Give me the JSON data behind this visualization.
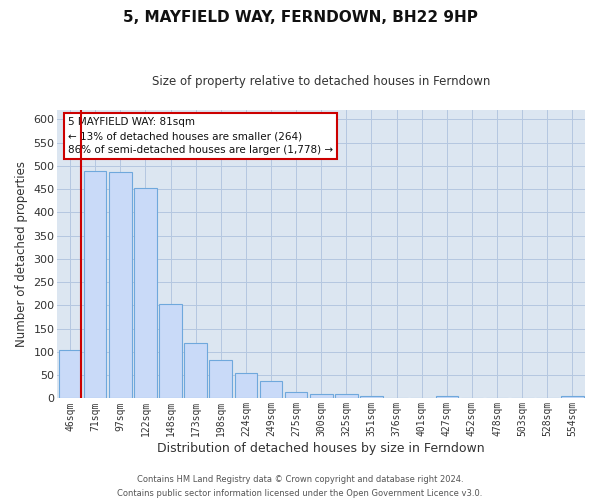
{
  "title": "5, MAYFIELD WAY, FERNDOWN, BH22 9HP",
  "subtitle": "Size of property relative to detached houses in Ferndown",
  "xlabel": "Distribution of detached houses by size in Ferndown",
  "ylabel": "Number of detached properties",
  "bar_labels": [
    "46sqm",
    "71sqm",
    "97sqm",
    "122sqm",
    "148sqm",
    "173sqm",
    "198sqm",
    "224sqm",
    "249sqm",
    "275sqm",
    "300sqm",
    "325sqm",
    "351sqm",
    "376sqm",
    "401sqm",
    "427sqm",
    "452sqm",
    "478sqm",
    "503sqm",
    "528sqm",
    "554sqm"
  ],
  "bar_values": [
    105,
    488,
    487,
    453,
    202,
    120,
    82,
    55,
    38,
    14,
    9,
    10,
    5,
    0,
    0,
    5,
    0,
    0,
    0,
    0,
    5
  ],
  "bar_color": "#c9daf8",
  "bar_edge_color": "#6fa8dc",
  "bar_edge_width": 0.8,
  "grid_color": "#b4c7e0",
  "background_color": "#dce6f1",
  "fig_background_color": "#ffffff",
  "property_line_color": "#cc0000",
  "annotation_title": "5 MAYFIELD WAY: 81sqm",
  "annotation_line1": "← 13% of detached houses are smaller (264)",
  "annotation_line2": "86% of semi-detached houses are larger (1,778) →",
  "annotation_box_color": "#ffffff",
  "annotation_box_edge_color": "#cc0000",
  "ylim": [
    0,
    620
  ],
  "yticks": [
    0,
    50,
    100,
    150,
    200,
    250,
    300,
    350,
    400,
    450,
    500,
    550,
    600
  ],
  "footer_line1": "Contains HM Land Registry data © Crown copyright and database right 2024.",
  "footer_line2": "Contains public sector information licensed under the Open Government Licence v3.0."
}
